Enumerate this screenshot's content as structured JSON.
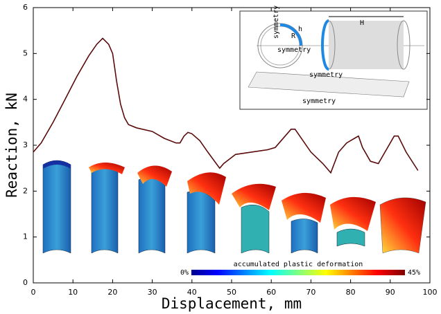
{
  "chart_data": {
    "type": "line",
    "x_label": "Displacement, mm",
    "y_label": "Reaction, kN",
    "x": [
      0,
      2,
      5,
      8,
      11,
      14,
      16,
      17.5,
      19,
      20,
      20.5,
      21,
      22,
      23,
      24,
      26,
      30,
      33,
      36,
      37,
      38,
      39,
      40,
      42,
      44,
      47,
      48,
      51,
      55,
      59,
      61,
      62,
      65,
      66,
      68,
      70,
      73,
      75,
      77,
      79,
      81,
      82,
      83,
      85,
      87,
      89,
      91,
      92,
      94,
      97
    ],
    "values": [
      2.85,
      3.05,
      3.5,
      4.0,
      4.5,
      4.95,
      5.2,
      5.33,
      5.2,
      5.0,
      4.7,
      4.4,
      3.9,
      3.6,
      3.45,
      3.38,
      3.3,
      3.15,
      3.05,
      3.05,
      3.2,
      3.28,
      3.25,
      3.1,
      2.85,
      2.5,
      2.6,
      2.8,
      2.85,
      2.9,
      2.95,
      3.05,
      3.35,
      3.35,
      3.1,
      2.85,
      2.6,
      2.4,
      2.85,
      3.05,
      3.15,
      3.2,
      2.95,
      2.65,
      2.6,
      2.9,
      3.2,
      3.2,
      2.85,
      2.45
    ],
    "color": "#5a0a0a",
    "xlim": [
      0,
      100
    ],
    "xticks": [
      0,
      10,
      20,
      30,
      40,
      50,
      60,
      70,
      80,
      90,
      100
    ],
    "ylim": [
      0,
      6
    ],
    "yticks": [
      0,
      1,
      2,
      3,
      4,
      5,
      6
    ],
    "colorbar": {
      "min_label": "0%",
      "title": "accumulated plastic deformation",
      "max_label": "45%"
    },
    "inset_labels": {
      "symmetry_1": "symmetry",
      "symmetry_2": "symmetry",
      "symmetry_3": "symmetry",
      "symmetry_4": "symmetry",
      "H": "H",
      "R": "R",
      "h": "h"
    }
  }
}
